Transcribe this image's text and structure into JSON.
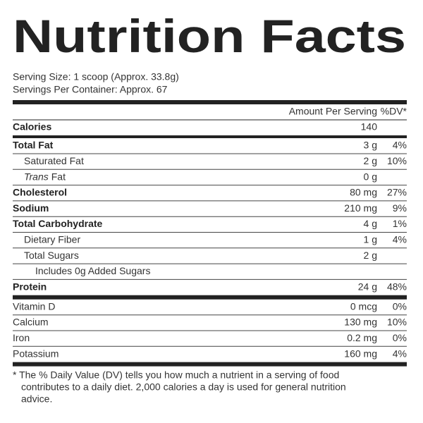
{
  "title": "Nutrition Facts",
  "serving": [
    "Serving Size: 1 scoop (Approx. 33.8g)",
    "Servings Per Container: Approx. 67"
  ],
  "header": {
    "amount": "Amount Per Serving",
    "dv": "%DV*"
  },
  "sections": [
    {
      "rows": [
        {
          "name": "Calories",
          "amount": "140",
          "bold": true,
          "indent": 0
        }
      ]
    },
    {
      "rows": [
        {
          "name": "Total Fat",
          "amount": "3 g",
          "dv": "4%",
          "bold": true,
          "indent": 0
        },
        {
          "name": "Saturated Fat",
          "amount": "2 g",
          "dv": "10%",
          "indent": 1
        },
        {
          "name_italic": "Trans",
          "name": "Fat",
          "amount": "0 g",
          "indent": 1
        },
        {
          "name": "Cholesterol",
          "amount": "80 mg",
          "dv": "27%",
          "bold": true,
          "indent": 0
        },
        {
          "name": "Sodium",
          "amount": "210 mg",
          "dv": "9%",
          "bold": true,
          "indent": 0
        },
        {
          "name": "Total Carbohydrate",
          "amount": "4 g",
          "dv": "1%",
          "bold": true,
          "indent": 0
        },
        {
          "name": "Dietary Fiber",
          "amount": "1 g",
          "dv": "4%",
          "indent": 1
        },
        {
          "name": "Total Sugars",
          "amount": "2 g",
          "indent": 1
        },
        {
          "name": "Includes 0g Added Sugars",
          "indent": 2
        },
        {
          "name": "Protein",
          "amount": "24 g",
          "dv": "48%",
          "bold": true,
          "indent": 0
        }
      ]
    },
    {
      "rows": [
        {
          "name": "Vitamin D",
          "amount": "0 mcg",
          "dv": "0%",
          "indent": 0
        },
        {
          "name": "Calcium",
          "amount": "130 mg",
          "dv": "10%",
          "indent": 0
        },
        {
          "name": "Iron",
          "amount": "0.2 mg",
          "dv": "0%",
          "indent": 0
        },
        {
          "name": "Potassium",
          "amount": "160 mg",
          "dv": "4%",
          "indent": 0
        }
      ]
    }
  ],
  "footnote": [
    "* The % Daily Value (DV) tells you how much a nutrient in a serving of food",
    "contributes to a daily diet. 2,000 calories a day is used for general nutrition",
    "advice."
  ]
}
